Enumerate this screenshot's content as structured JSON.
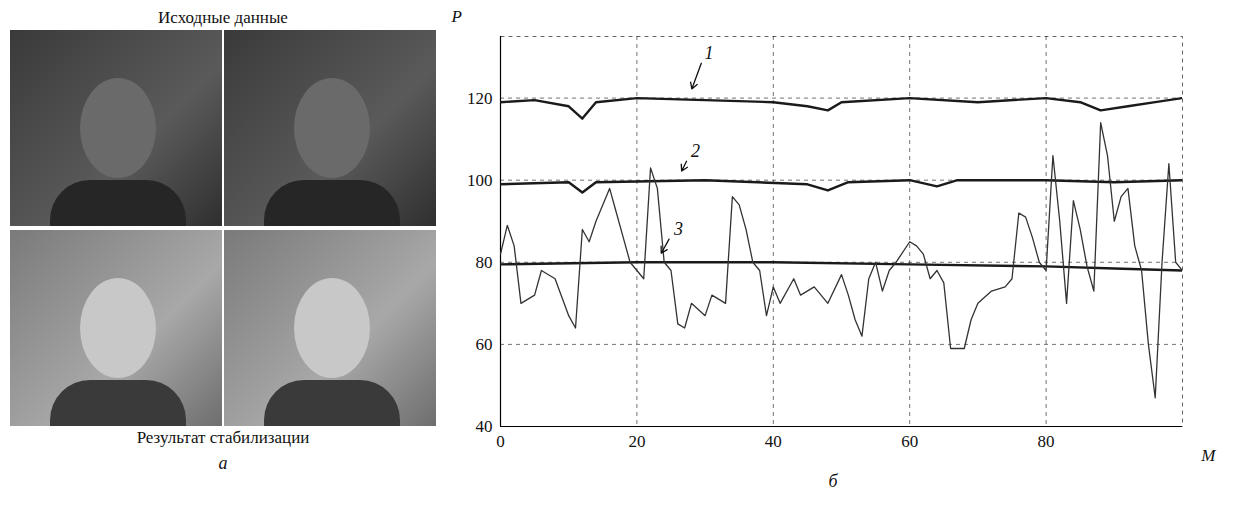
{
  "images_panel": {
    "panel_label": "а",
    "top_caption": "Исходные данные",
    "bottom_caption": "Результат стабилизации"
  },
  "chart_data": {
    "type": "line",
    "panel_label": "б",
    "x_label": "M",
    "y_label": "P",
    "xlim": [
      0,
      100
    ],
    "ylim": [
      40,
      135
    ],
    "xticks": [
      0,
      20,
      40,
      60,
      80
    ],
    "yticks": [
      40,
      60,
      80,
      100,
      120
    ],
    "grid": true,
    "series": [
      {
        "name": "1",
        "color": "#1a1a1a",
        "label_at": [
          30,
          131
        ],
        "arrow_to": [
          28,
          122
        ],
        "x": [
          0,
          5,
          10,
          12,
          14,
          20,
          30,
          40,
          45,
          48,
          50,
          60,
          70,
          80,
          85,
          88,
          92,
          96,
          100
        ],
        "values": [
          119,
          119.5,
          118,
          115,
          119,
          120,
          119.5,
          119,
          118,
          117,
          119,
          120,
          119,
          120,
          119,
          117,
          118,
          119,
          120
        ]
      },
      {
        "name": "2",
        "color": "#1a1a1a",
        "label_at": [
          28,
          107
        ],
        "arrow_to": [
          26.5,
          102
        ],
        "x": [
          0,
          10,
          12,
          14,
          30,
          45,
          48,
          51,
          60,
          64,
          67,
          80,
          90,
          100
        ],
        "values": [
          99,
          99.5,
          97,
          99.5,
          100,
          99,
          97.5,
          99.5,
          100,
          98.5,
          100,
          100,
          99.5,
          100
        ]
      },
      {
        "name": "3",
        "color": "#1a1a1a",
        "label_at": [
          25.5,
          88
        ],
        "arrow_to": [
          23.5,
          82
        ],
        "x": [
          0,
          20,
          40,
          60,
          80,
          90,
          100
        ],
        "values": [
          79.5,
          80,
          80,
          79.5,
          79,
          78.5,
          78
        ]
      },
      {
        "color": "#333333",
        "x": [
          0,
          1,
          2,
          3,
          5,
          6,
          8,
          10,
          11,
          12,
          13,
          14,
          16,
          17,
          18,
          19,
          20,
          21,
          22,
          23,
          24,
          25,
          26,
          27,
          28,
          30,
          31,
          33,
          34,
          35,
          36,
          37,
          38,
          39,
          40,
          41,
          43,
          44,
          46,
          48,
          50,
          51,
          52,
          53,
          54,
          55,
          56,
          57,
          58,
          60,
          61,
          62,
          63,
          64,
          65,
          66,
          68,
          69,
          70,
          72,
          74,
          75,
          76,
          77,
          78,
          79,
          80,
          81,
          82,
          83,
          84,
          85,
          86,
          87,
          88,
          89,
          90,
          91,
          92,
          93,
          94,
          95,
          96,
          97,
          98,
          99,
          100
        ],
        "values": [
          82,
          89,
          84,
          70,
          72,
          78,
          76,
          67,
          64,
          88,
          85,
          90,
          98,
          92,
          86,
          80,
          78,
          76,
          103,
          98,
          80,
          78,
          65,
          64,
          70,
          67,
          72,
          70,
          96,
          94,
          88,
          80,
          78,
          67,
          74,
          70,
          76,
          72,
          74,
          70,
          77,
          72,
          66,
          62,
          76,
          80,
          73,
          78,
          80,
          85,
          84,
          82,
          76,
          78,
          75,
          59,
          59,
          66,
          70,
          73,
          74,
          76,
          92,
          91,
          86,
          80,
          78,
          106,
          90,
          70,
          95,
          88,
          79,
          73,
          114,
          106,
          90,
          96,
          98,
          84,
          78,
          60,
          47,
          80,
          104,
          80,
          78
        ]
      }
    ]
  }
}
